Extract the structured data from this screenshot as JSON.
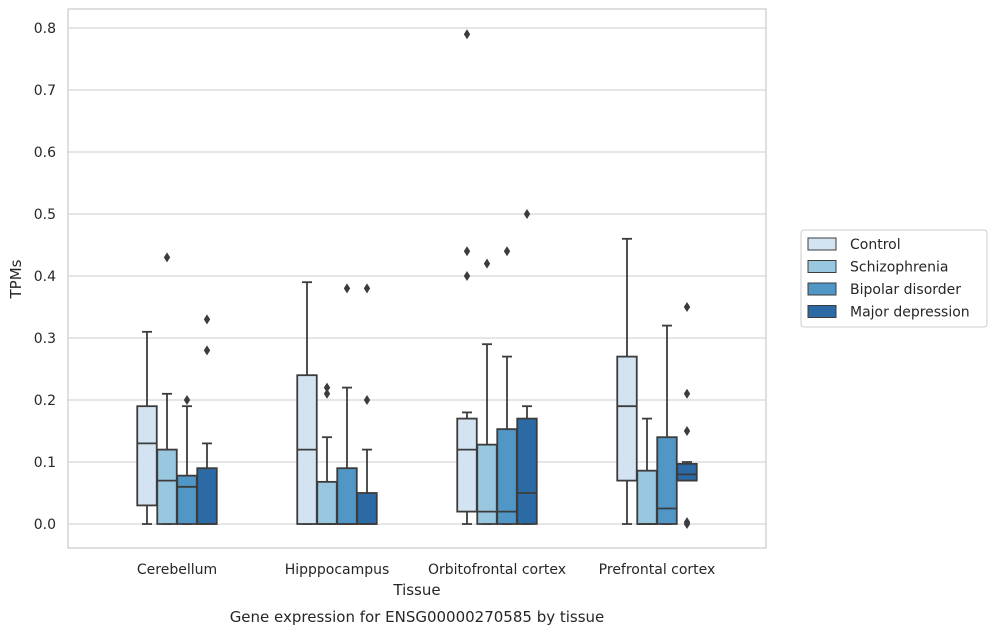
{
  "chart_data": {
    "type": "box",
    "xlabel": "Tissue",
    "ylabel": "TPMs",
    "caption": "Gene expression for ENSG00000270585 by tissue",
    "ylim": [
      -0.04,
      0.83
    ],
    "yticks": [
      "0.0",
      "0.1",
      "0.2",
      "0.3",
      "0.4",
      "0.5",
      "0.6",
      "0.7",
      "0.8"
    ],
    "ytick_values": [
      0,
      0.1,
      0.2,
      0.3,
      0.4,
      0.5,
      0.6,
      0.7,
      0.8
    ],
    "grid": "horizontal",
    "legend_position": "outside right",
    "categories": [
      "Cerebellum",
      "Hipppocampus",
      "Orbitofrontal cortex",
      "Prefrontal cortex"
    ],
    "series": [
      {
        "name": "Control",
        "color": "#d4e3f2",
        "boxes": [
          {
            "whislo": 0,
            "q1": 0.03,
            "med": 0.13,
            "q3": 0.19,
            "whishi": 0.31,
            "fliers": []
          },
          {
            "whislo": 0,
            "q1": 0,
            "med": 0.12,
            "q3": 0.24,
            "whishi": 0.39,
            "fliers": []
          },
          {
            "whislo": 0,
            "q1": 0.02,
            "med": 0.12,
            "q3": 0.17,
            "whishi": 0.18,
            "fliers": [
              0.79,
              0.44,
              0.4
            ]
          },
          {
            "whislo": 0,
            "q1": 0.07,
            "med": 0.19,
            "q3": 0.27,
            "whishi": 0.46,
            "fliers": []
          }
        ]
      },
      {
        "name": "Schizophrenia",
        "color": "#9ac7e0",
        "boxes": [
          {
            "whislo": 0,
            "q1": 0,
            "med": 0.07,
            "q3": 0.12,
            "whishi": 0.21,
            "fliers": [
              0.43
            ]
          },
          {
            "whislo": 0,
            "q1": 0,
            "med": 0,
            "q3": 0.068,
            "whishi": 0.14,
            "fliers": [
              0.22,
              0.21
            ]
          },
          {
            "whislo": 0,
            "q1": 0,
            "med": 0.02,
            "q3": 0.128,
            "whishi": 0.29,
            "fliers": [
              0.42
            ]
          },
          {
            "whislo": 0,
            "q1": 0,
            "med": 0,
            "q3": 0.086,
            "whishi": 0.17,
            "fliers": []
          }
        ]
      },
      {
        "name": "Bipolar disorder",
        "color": "#5097c8",
        "boxes": [
          {
            "whislo": 0,
            "q1": 0,
            "med": 0.06,
            "q3": 0.078,
            "whishi": 0.19,
            "fliers": [
              0.2
            ]
          },
          {
            "whislo": 0,
            "q1": 0,
            "med": 0,
            "q3": 0.09,
            "whishi": 0.22,
            "fliers": [
              0.38
            ]
          },
          {
            "whislo": 0,
            "q1": 0,
            "med": 0.02,
            "q3": 0.153,
            "whishi": 0.27,
            "fliers": [
              0.44
            ]
          },
          {
            "whislo": 0,
            "q1": 0,
            "med": 0.025,
            "q3": 0.14,
            "whishi": 0.32,
            "fliers": []
          }
        ]
      },
      {
        "name": "Major depression",
        "color": "#2c6aa6",
        "boxes": [
          {
            "whislo": 0,
            "q1": 0,
            "med": 0,
            "q3": 0.09,
            "whishi": 0.13,
            "fliers": [
              0.33,
              0.28
            ]
          },
          {
            "whislo": 0,
            "q1": 0,
            "med": 0,
            "q3": 0.05,
            "whishi": 0.12,
            "fliers": [
              0.38,
              0.2
            ]
          },
          {
            "whislo": 0,
            "q1": 0,
            "med": 0.05,
            "q3": 0.17,
            "whishi": 0.19,
            "fliers": [
              0.5
            ]
          },
          {
            "whislo": 0.07,
            "q1": 0.07,
            "med": 0.08,
            "q3": 0.097,
            "whishi": 0.1,
            "fliers": [
              0.35,
              0.21,
              0.15,
              0.003,
              0
            ]
          }
        ]
      }
    ]
  }
}
